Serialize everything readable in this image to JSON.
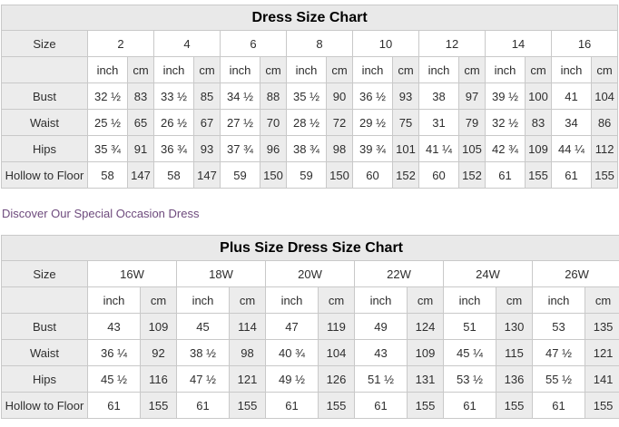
{
  "link": {
    "text": "Discover Our Special Occasion Dress",
    "color": "#6e4b7d"
  },
  "colors": {
    "table_border": "#c9c9c9",
    "header_shade": "#ececec",
    "title_background": "#e9e9e9",
    "cell_text": "#2e2e2e"
  },
  "chart_data": [
    {
      "type": "table",
      "title": "Dress Size Chart",
      "corner_label": "Size",
      "column_groups": [
        "2",
        "4",
        "6",
        "8",
        "10",
        "12",
        "14",
        "16"
      ],
      "unit_headers": [
        "inch",
        "cm"
      ],
      "rows": [
        {
          "label": "Bust",
          "values": [
            "32 ½",
            "83",
            "33 ½",
            "85",
            "34 ½",
            "88",
            "35 ½",
            "90",
            "36 ½",
            "93",
            "38",
            "97",
            "39 ½",
            "100",
            "41",
            "104"
          ]
        },
        {
          "label": "Waist",
          "values": [
            "25 ½",
            "65",
            "26 ½",
            "67",
            "27 ½",
            "70",
            "28 ½",
            "72",
            "29 ½",
            "75",
            "31",
            "79",
            "32 ½",
            "83",
            "34",
            "86"
          ]
        },
        {
          "label": "Hips",
          "values": [
            "35 ¾",
            "91",
            "36 ¾",
            "93",
            "37 ¾",
            "96",
            "38 ¾",
            "98",
            "39 ¾",
            "101",
            "41 ¼",
            "105",
            "42 ¾",
            "109",
            "44 ¼",
            "112"
          ]
        },
        {
          "label": "Hollow to Floor",
          "values": [
            "58",
            "147",
            "58",
            "147",
            "59",
            "150",
            "59",
            "150",
            "60",
            "152",
            "60",
            "152",
            "61",
            "155",
            "61",
            "155"
          ]
        }
      ]
    },
    {
      "type": "table",
      "title": "Plus Size Dress Size Chart",
      "corner_label": "Size",
      "column_groups": [
        "16W",
        "18W",
        "20W",
        "22W",
        "24W",
        "26W"
      ],
      "unit_headers": [
        "inch",
        "cm"
      ],
      "rows": [
        {
          "label": "Bust",
          "values": [
            "43",
            "109",
            "45",
            "114",
            "47",
            "119",
            "49",
            "124",
            "51",
            "130",
            "53",
            "135"
          ]
        },
        {
          "label": "Waist",
          "values": [
            "36 ¼",
            "92",
            "38 ½",
            "98",
            "40 ¾",
            "104",
            "43",
            "109",
            "45 ¼",
            "115",
            "47 ½",
            "121"
          ]
        },
        {
          "label": "Hips",
          "values": [
            "45 ½",
            "116",
            "47 ½",
            "121",
            "49 ½",
            "126",
            "51 ½",
            "131",
            "53 ½",
            "136",
            "55 ½",
            "141"
          ]
        },
        {
          "label": "Hollow to Floor",
          "values": [
            "61",
            "155",
            "61",
            "155",
            "61",
            "155",
            "61",
            "155",
            "61",
            "155",
            "61",
            "155"
          ]
        }
      ]
    }
  ]
}
